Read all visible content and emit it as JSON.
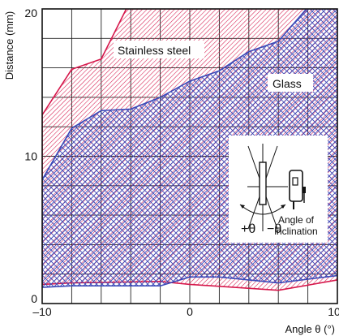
{
  "chart_data": {
    "type": "area",
    "title": "",
    "xlabel": "Angle θ (°)",
    "ylabel": "Distance (mm)",
    "xlim": [
      -10,
      10
    ],
    "ylim": [
      0,
      20
    ],
    "x_ticks": [
      -10,
      0,
      10
    ],
    "x_tick_labels": [
      "–10",
      "0",
      "10"
    ],
    "y_ticks": [
      0,
      10,
      20
    ],
    "y_tick_labels": [
      "0",
      "10",
      "20"
    ],
    "grid": true,
    "series": [
      {
        "name": "Stainless steel",
        "color": "#d6174b",
        "pattern": "diagonal-hatch",
        "upper": [
          [
            -10,
            12.8
          ],
          [
            -8,
            15.9
          ],
          [
            -6,
            16.6
          ],
          [
            -4.3,
            20
          ],
          [
            10,
            20
          ]
        ],
        "lower": [
          [
            -10,
            1.3
          ],
          [
            -8,
            1.4
          ],
          [
            -2,
            1.5
          ],
          [
            0,
            1.3
          ],
          [
            6,
            0.9
          ],
          [
            10,
            1.6
          ]
        ]
      },
      {
        "name": "Glass",
        "color": "#3a49b8",
        "pattern": "cross-hatch",
        "upper": [
          [
            -10,
            8.4
          ],
          [
            -8,
            11.9
          ],
          [
            -6,
            13.1
          ],
          [
            -4,
            13.2
          ],
          [
            -2,
            14
          ],
          [
            0,
            15.1
          ],
          [
            2,
            15.8
          ],
          [
            4,
            17.1
          ],
          [
            6,
            17.8
          ],
          [
            7.9,
            20
          ],
          [
            10,
            20
          ]
        ],
        "lower": [
          [
            -10,
            1.1
          ],
          [
            -8,
            1.2
          ],
          [
            -2,
            1.2
          ],
          [
            0,
            1.8
          ],
          [
            2,
            1.8
          ],
          [
            6,
            1.4
          ],
          [
            10,
            1.9
          ]
        ]
      }
    ],
    "inset": {
      "label_plus": "+θ",
      "label_minus": "−θ",
      "caption": [
        "Angle of",
        "inclination"
      ]
    }
  }
}
